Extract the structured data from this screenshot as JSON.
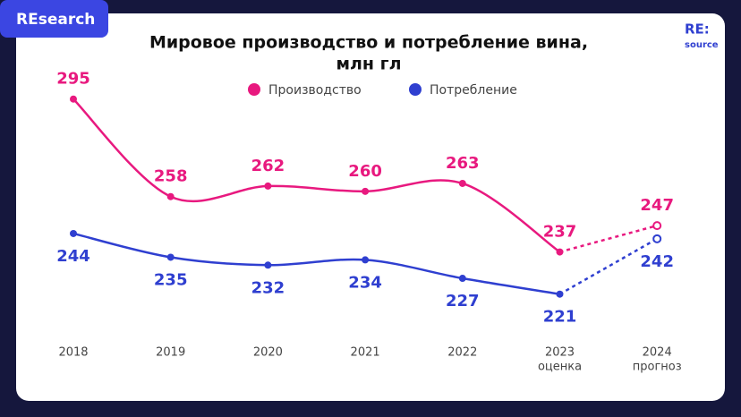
{
  "badge": "REsearch",
  "logo": [
    "RE:",
    "source"
  ],
  "chart_data": {
    "type": "line",
    "title": [
      "Мировое производство и потребление вина,",
      "млн гл"
    ],
    "categories": [
      "2018",
      "2019",
      "2020",
      "2021",
      "2022",
      "2023",
      "2024"
    ],
    "category_sublabels": [
      null,
      null,
      null,
      null,
      null,
      "оценка",
      "прогноз"
    ],
    "series": [
      {
        "name": "Производство",
        "color": "#e8197f",
        "values": [
          295,
          258,
          262,
          260,
          263,
          237,
          247
        ]
      },
      {
        "name": "Потребление",
        "color": "#2f3fd0",
        "values": [
          244,
          235,
          232,
          234,
          227,
          221,
          242
        ]
      }
    ],
    "ylim": [
      190,
      300
    ]
  }
}
